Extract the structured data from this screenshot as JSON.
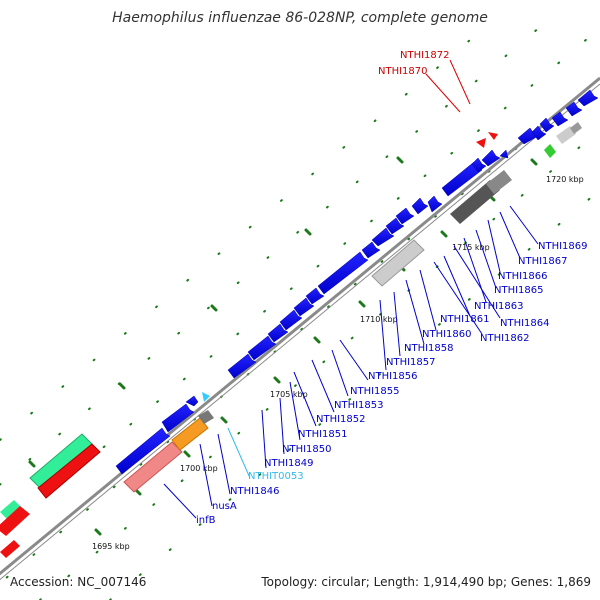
{
  "title": "Haemophilus influenzae 86-028NP, complete genome",
  "footer": {
    "accession": "Accession: NC_007146",
    "topology": "Topology: circular; Length: 1,914,490 bp; Genes: 1,869"
  },
  "colors": {
    "cds": "#0000ee",
    "trna": "#33ccff",
    "highlight": "#ee0000",
    "backbone": "#888888",
    "tick": "#1a7a1a"
  },
  "scale_labels": [
    "1695 kbp",
    "1700 kbp",
    "1705 kbp",
    "1710 kbp",
    "1715 kbp",
    "1720 kbp"
  ],
  "gene_labels": [
    {
      "text": "NTHI1872",
      "color": "#cc0000"
    },
    {
      "text": "NTHI1870",
      "color": "#cc0000"
    },
    {
      "text": "NTHI1869",
      "color": "#0000cc"
    },
    {
      "text": "NTHI1867",
      "color": "#0000cc"
    },
    {
      "text": "NTHI1866",
      "color": "#0000cc"
    },
    {
      "text": "NTHI1865",
      "color": "#0000cc"
    },
    {
      "text": "NTHI1863",
      "color": "#0000cc"
    },
    {
      "text": "NTHI1864",
      "color": "#0000cc"
    },
    {
      "text": "NTHI1861",
      "color": "#0000cc"
    },
    {
      "text": "NTHI1862",
      "color": "#0000cc"
    },
    {
      "text": "NTHI1860",
      "color": "#0000cc"
    },
    {
      "text": "NTHI1858",
      "color": "#0000cc"
    },
    {
      "text": "NTHI1857",
      "color": "#0000cc"
    },
    {
      "text": "NTHI1856",
      "color": "#0000cc"
    },
    {
      "text": "NTHI1855",
      "color": "#0000cc"
    },
    {
      "text": "NTHI1853",
      "color": "#0000cc"
    },
    {
      "text": "NTHI1852",
      "color": "#0000cc"
    },
    {
      "text": "NTHI1851",
      "color": "#0000cc"
    },
    {
      "text": "NTHI1850",
      "color": "#0000cc"
    },
    {
      "text": "NTHI1849",
      "color": "#0000cc"
    },
    {
      "text": "NTHIT0053",
      "color": "#33bbee"
    },
    {
      "text": "NTHI1846",
      "color": "#0000cc"
    },
    {
      "text": "nusA",
      "color": "#0000cc"
    },
    {
      "text": "infB",
      "color": "#0000cc"
    }
  ]
}
